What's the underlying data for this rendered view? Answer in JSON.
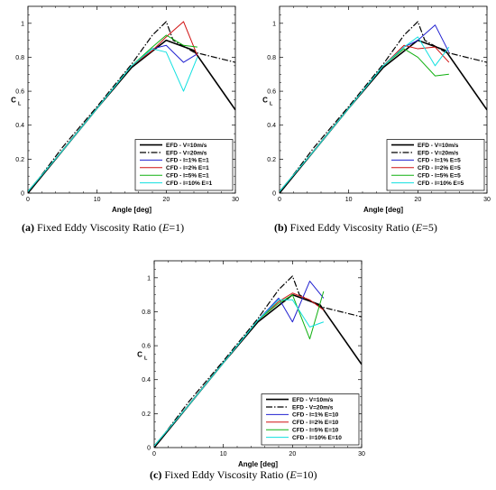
{
  "chart_data": [
    {
      "type": "line",
      "caption": {
        "label": "(a)",
        "text": "Fixed Eddy Viscosity Ratio (",
        "var": "E",
        "value": "=1)"
      },
      "xlabel": "Angle [deg]",
      "ylabel": "C",
      "ylabel_sub": "L",
      "xlim": [
        0,
        30
      ],
      "ylim": [
        0,
        1.1
      ],
      "xticks": [
        "0",
        "10",
        "20",
        "30"
      ],
      "yticks": [
        "0",
        "0.2",
        "0.4",
        "0.6",
        "0.8",
        "1"
      ],
      "legend_position": "lower-right",
      "series": [
        {
          "name": "EFD - V=10m/s",
          "color": "#000000",
          "dash": "solid",
          "width": 1.6,
          "x": [
            0,
            5,
            10,
            15,
            20,
            24,
            30
          ],
          "y": [
            0.0,
            0.25,
            0.5,
            0.74,
            0.9,
            0.84,
            0.49
          ]
        },
        {
          "name": "EFD - V=20m/s",
          "color": "#000000",
          "dash": "dashdot",
          "width": 1.2,
          "x": [
            0,
            5,
            10,
            15,
            18,
            20,
            21,
            24,
            30
          ],
          "y": [
            0.0,
            0.27,
            0.51,
            0.76,
            0.93,
            1.01,
            0.9,
            0.83,
            0.77
          ]
        },
        {
          "name": "CFD - I=1% E=1",
          "color": "#2020d0",
          "dash": "solid",
          "width": 1.0,
          "x": [
            0,
            5,
            10,
            15,
            18,
            20,
            22.5,
            24.5
          ],
          "y": [
            0.01,
            0.25,
            0.5,
            0.75,
            0.85,
            0.87,
            0.77,
            0.82
          ]
        },
        {
          "name": "CFD - I=2% E=1",
          "color": "#d01010",
          "dash": "solid",
          "width": 1.0,
          "x": [
            0,
            5,
            10,
            15,
            18,
            20,
            22.5,
            24.5
          ],
          "y": [
            0.01,
            0.25,
            0.5,
            0.75,
            0.84,
            0.92,
            1.01,
            0.81
          ]
        },
        {
          "name": "CFD - I=5% E=1",
          "color": "#10b010",
          "dash": "solid",
          "width": 1.0,
          "x": [
            0,
            5,
            10,
            15,
            18,
            20,
            22.5,
            24.5
          ],
          "y": [
            0.01,
            0.25,
            0.5,
            0.75,
            0.86,
            0.93,
            0.87,
            0.86
          ]
        },
        {
          "name": "CFD - I=10% E=1",
          "color": "#10e0e0",
          "dash": "solid",
          "width": 1.0,
          "x": [
            0,
            5,
            10,
            15,
            18,
            20,
            22.5,
            24.5
          ],
          "y": [
            0.01,
            0.25,
            0.5,
            0.75,
            0.85,
            0.83,
            0.6,
            0.8
          ]
        }
      ]
    },
    {
      "type": "line",
      "caption": {
        "label": "(b)",
        "text": "Fixed Eddy Viscosity Ratio (",
        "var": "E",
        "value": "=5)"
      },
      "xlabel": "Angle [deg]",
      "ylabel": "C",
      "ylabel_sub": "L",
      "xlim": [
        0,
        30
      ],
      "ylim": [
        0,
        1.1
      ],
      "xticks": [
        "0",
        "10",
        "20",
        "30"
      ],
      "yticks": [
        "0",
        "0.2",
        "0.4",
        "0.6",
        "0.8",
        "1"
      ],
      "legend_position": "lower-right",
      "series": [
        {
          "name": "EFD - V=10m/s",
          "color": "#000000",
          "dash": "solid",
          "width": 1.6,
          "x": [
            0,
            5,
            10,
            15,
            20,
            24,
            30
          ],
          "y": [
            0.0,
            0.25,
            0.5,
            0.74,
            0.9,
            0.84,
            0.49
          ]
        },
        {
          "name": "EFD - V=20m/s",
          "color": "#000000",
          "dash": "dashdot",
          "width": 1.2,
          "x": [
            0,
            5,
            10,
            15,
            18,
            20,
            21,
            24,
            30
          ],
          "y": [
            0.0,
            0.27,
            0.51,
            0.76,
            0.93,
            1.01,
            0.9,
            0.83,
            0.77
          ]
        },
        {
          "name": "CFD - I=1% E=5",
          "color": "#2020d0",
          "dash": "solid",
          "width": 1.0,
          "x": [
            0,
            5,
            10,
            15,
            18,
            20,
            22.5,
            24.5
          ],
          "y": [
            0.01,
            0.25,
            0.5,
            0.75,
            0.86,
            0.9,
            0.99,
            0.83
          ]
        },
        {
          "name": "CFD - I=2% E=5",
          "color": "#d01010",
          "dash": "solid",
          "width": 1.0,
          "x": [
            0,
            5,
            10,
            15,
            18,
            20,
            22.5,
            24.5
          ],
          "y": [
            0.01,
            0.25,
            0.5,
            0.75,
            0.87,
            0.85,
            0.86,
            0.77
          ]
        },
        {
          "name": "CFD - I=5% E=5",
          "color": "#10b010",
          "dash": "solid",
          "width": 1.0,
          "x": [
            0,
            5,
            10,
            15,
            18,
            20,
            22.5,
            24.5
          ],
          "y": [
            0.01,
            0.25,
            0.5,
            0.75,
            0.85,
            0.8,
            0.69,
            0.7
          ]
        },
        {
          "name": "CFD - I=10% E=5",
          "color": "#10e0e0",
          "dash": "solid",
          "width": 1.0,
          "x": [
            0,
            5,
            10,
            15,
            18,
            20,
            22.5,
            24.5
          ],
          "y": [
            0.01,
            0.25,
            0.5,
            0.75,
            0.86,
            0.92,
            0.75,
            0.86
          ]
        }
      ]
    },
    {
      "type": "line",
      "caption": {
        "label": "(c)",
        "text": "Fixed Eddy Viscosity Ratio (",
        "var": "E",
        "value": "=10)"
      },
      "xlabel": "Angle [deg]",
      "ylabel": "C",
      "ylabel_sub": "L",
      "xlim": [
        0,
        30
      ],
      "ylim": [
        0,
        1.1
      ],
      "xticks": [
        "0",
        "10",
        "20",
        "30"
      ],
      "yticks": [
        "0",
        "0.2",
        "0.4",
        "0.6",
        "0.8",
        "1"
      ],
      "legend_position": "lower-right",
      "series": [
        {
          "name": "EFD - V=10m/s",
          "color": "#000000",
          "dash": "solid",
          "width": 1.6,
          "x": [
            0,
            5,
            10,
            15,
            20,
            24,
            30
          ],
          "y": [
            0.0,
            0.25,
            0.5,
            0.74,
            0.9,
            0.84,
            0.49
          ]
        },
        {
          "name": "EFD - V=20m/s",
          "color": "#000000",
          "dash": "dashdot",
          "width": 1.2,
          "x": [
            0,
            5,
            10,
            15,
            18,
            20,
            21,
            24,
            30
          ],
          "y": [
            0.0,
            0.27,
            0.51,
            0.76,
            0.93,
            1.01,
            0.9,
            0.83,
            0.77
          ]
        },
        {
          "name": "CFD - I=1% E=10",
          "color": "#2020d0",
          "dash": "solid",
          "width": 1.0,
          "x": [
            0,
            5,
            10,
            15,
            18,
            20,
            22.5,
            24.5
          ],
          "y": [
            0.01,
            0.25,
            0.5,
            0.75,
            0.88,
            0.74,
            0.98,
            0.88
          ]
        },
        {
          "name": "CFD - I=2% E=10",
          "color": "#d01010",
          "dash": "solid",
          "width": 1.0,
          "x": [
            0,
            5,
            10,
            15,
            18,
            20,
            22.5,
            24.5
          ],
          "y": [
            0.01,
            0.25,
            0.5,
            0.75,
            0.86,
            0.91,
            0.87,
            0.81
          ]
        },
        {
          "name": "CFD - I=5% E=10",
          "color": "#10b010",
          "dash": "solid",
          "width": 1.0,
          "x": [
            0,
            5,
            10,
            15,
            18,
            20,
            22.5,
            24.5
          ],
          "y": [
            0.01,
            0.25,
            0.5,
            0.75,
            0.85,
            0.9,
            0.64,
            0.92
          ]
        },
        {
          "name": "CFD - I=10% E=10",
          "color": "#10e0e0",
          "dash": "solid",
          "width": 1.0,
          "x": [
            0,
            5,
            10,
            15,
            18,
            20,
            22.5,
            24.5
          ],
          "y": [
            0.01,
            0.25,
            0.5,
            0.75,
            0.87,
            0.87,
            0.71,
            0.74
          ]
        }
      ]
    }
  ]
}
